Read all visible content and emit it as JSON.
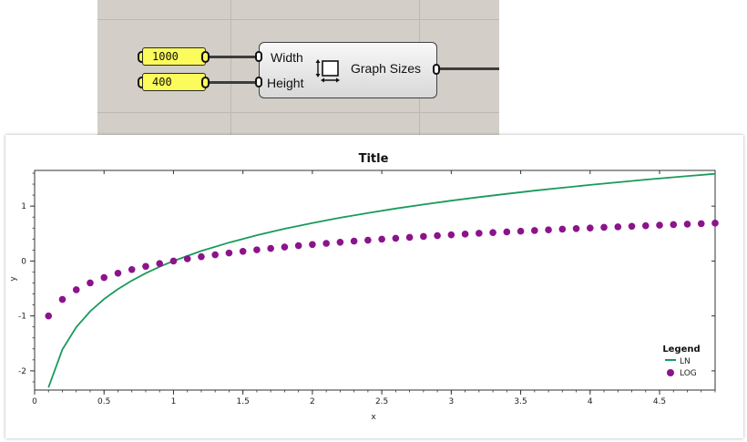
{
  "canvas": {
    "panels": [
      {
        "value": "1000"
      },
      {
        "value": "400"
      }
    ],
    "component": {
      "name": "Graph Sizes",
      "inputs": [
        "Width",
        "Height"
      ],
      "icon": "resize-icon"
    }
  },
  "chart_data": {
    "type": "line",
    "title": "Title",
    "xlabel": "x",
    "ylabel": "y",
    "xlim": [
      0,
      4.9
    ],
    "ylim": [
      -2.35,
      1.65
    ],
    "xticks": [
      "0",
      "0.5",
      "1",
      "1.5",
      "2",
      "2.5",
      "3",
      "3.5",
      "4",
      "4.5"
    ],
    "yticks": [
      "-2",
      "-1",
      "0",
      "1"
    ],
    "legend": {
      "title": "Legend",
      "placement": "bottom-right"
    },
    "series": [
      {
        "name": "LN",
        "style": "line",
        "color": "#1a9a5a",
        "x": [
          0.1,
          0.2,
          0.3,
          0.4,
          0.5,
          0.6,
          0.7,
          0.8,
          0.9,
          1.0,
          1.2,
          1.4,
          1.6,
          1.8,
          2.0,
          2.2,
          2.4,
          2.6,
          2.8,
          3.0,
          3.2,
          3.4,
          3.6,
          3.8,
          4.0,
          4.2,
          4.4,
          4.6,
          4.9
        ],
        "y": [
          -2.303,
          -1.609,
          -1.204,
          -0.916,
          -0.693,
          -0.511,
          -0.357,
          -0.223,
          -0.105,
          0.0,
          0.182,
          0.336,
          0.47,
          0.588,
          0.693,
          0.788,
          0.875,
          0.956,
          1.03,
          1.099,
          1.163,
          1.224,
          1.281,
          1.335,
          1.386,
          1.435,
          1.482,
          1.526,
          1.589
        ]
      },
      {
        "name": "LOG",
        "style": "scatter",
        "color": "#8b138b",
        "x": [
          0.1,
          0.2,
          0.3,
          0.4,
          0.5,
          0.6,
          0.7,
          0.8,
          0.9,
          1.0,
          1.1,
          1.2,
          1.3,
          1.4,
          1.5,
          1.6,
          1.7,
          1.8,
          1.9,
          2.0,
          2.1,
          2.2,
          2.3,
          2.4,
          2.5,
          2.6,
          2.7,
          2.8,
          2.9,
          3.0,
          3.1,
          3.2,
          3.3,
          3.4,
          3.5,
          3.6,
          3.7,
          3.8,
          3.9,
          4.0,
          4.1,
          4.2,
          4.3,
          4.4,
          4.5,
          4.6,
          4.7,
          4.8,
          4.9
        ],
        "y": [
          -1.0,
          -0.699,
          -0.523,
          -0.398,
          -0.301,
          -0.222,
          -0.155,
          -0.097,
          -0.046,
          0.0,
          0.041,
          0.079,
          0.114,
          0.146,
          0.176,
          0.204,
          0.23,
          0.255,
          0.279,
          0.301,
          0.322,
          0.342,
          0.362,
          0.38,
          0.398,
          0.415,
          0.431,
          0.447,
          0.462,
          0.477,
          0.491,
          0.505,
          0.519,
          0.531,
          0.544,
          0.556,
          0.568,
          0.58,
          0.591,
          0.602,
          0.613,
          0.623,
          0.633,
          0.643,
          0.653,
          0.663,
          0.672,
          0.681,
          0.69
        ]
      }
    ]
  }
}
